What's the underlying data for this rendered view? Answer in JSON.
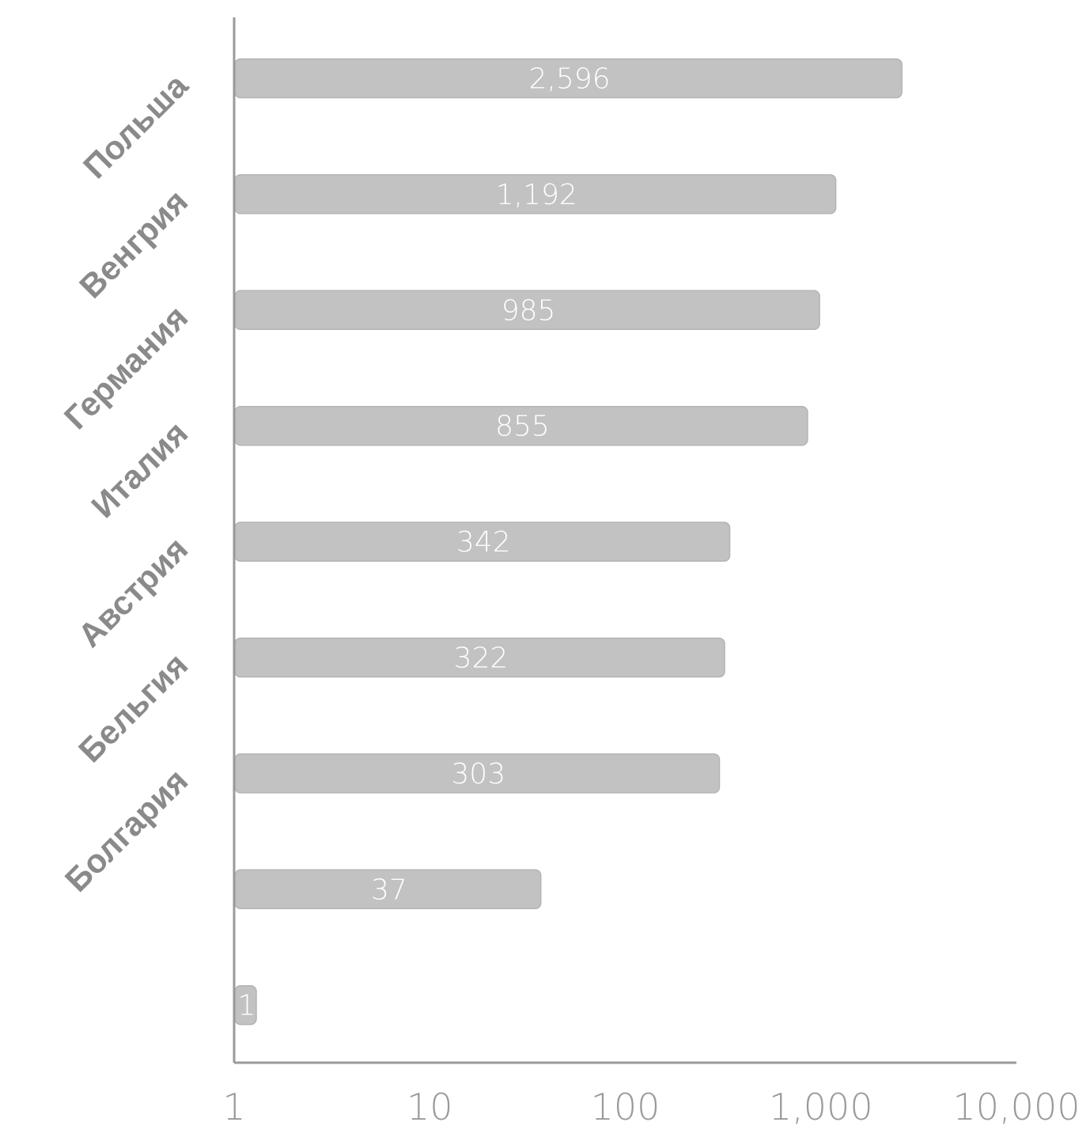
{
  "chart_data": {
    "type": "bar",
    "orientation": "horizontal",
    "scale": "log",
    "categories": [
      "Польша",
      "Венгрия",
      "Германия",
      "Италия",
      "Австрия",
      "Бельгия",
      "Болгария",
      "",
      ""
    ],
    "values": [
      2596,
      1192,
      985,
      855,
      342,
      322,
      303,
      37,
      1
    ],
    "value_labels": [
      "2,596",
      "1,192",
      "985",
      "855",
      "342",
      "322",
      "303",
      "37",
      "1"
    ],
    "xlim": [
      1,
      10000
    ],
    "x_ticks": [
      1,
      10,
      100,
      1000,
      10000
    ],
    "x_tick_labels": [
      "1",
      "10",
      "100",
      "1,000",
      "10,000"
    ],
    "title": "",
    "xlabel": "",
    "ylabel": "",
    "grid": false,
    "legend": "none",
    "colors": {
      "bar": "#c2c2c2",
      "bar_label": "#ffffff",
      "category_label": "#8a8a8a",
      "axis": "#9a9a9a"
    }
  }
}
